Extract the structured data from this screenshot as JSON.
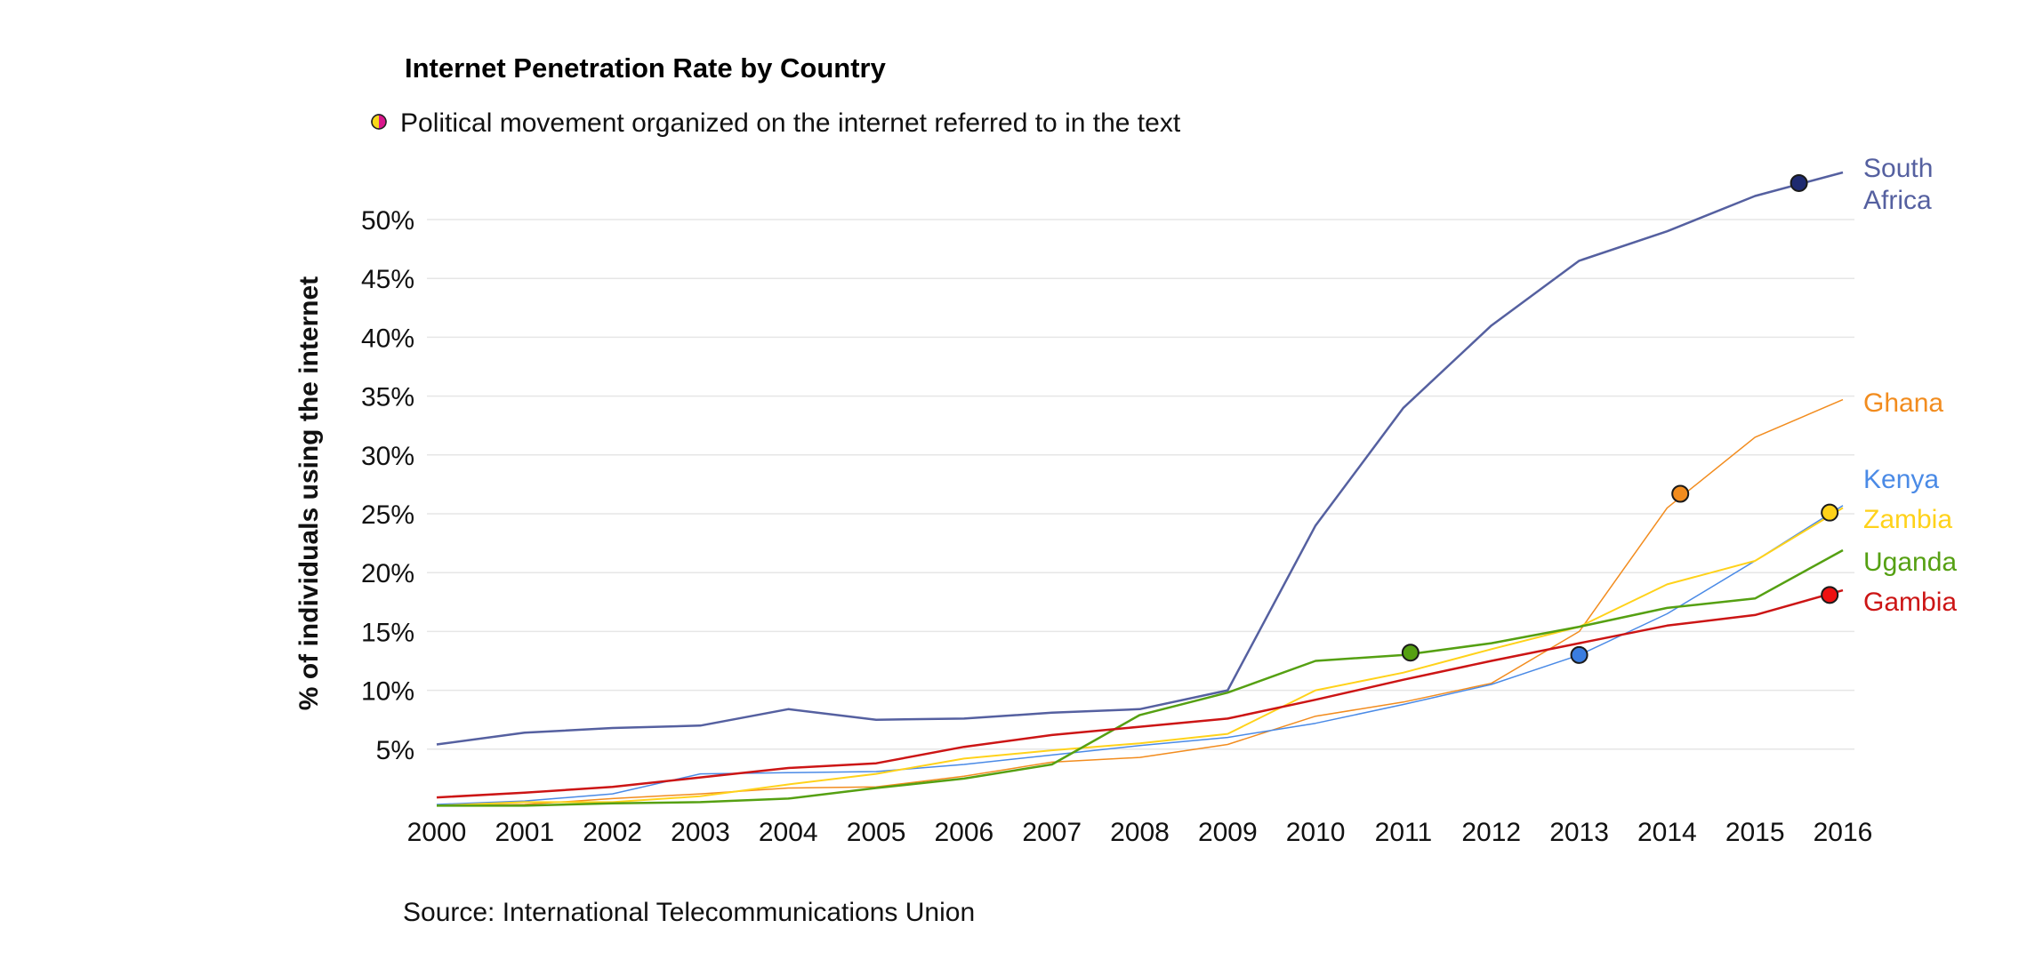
{
  "chart_data": {
    "type": "line",
    "title": "Internet Penetration Rate by Country",
    "legend_note": "Political movement organized on the internet referred to in the text",
    "ylabel": "% of individuals using the internet",
    "source": "Source: International Telecommunications Union",
    "x": [
      2000,
      2001,
      2002,
      2003,
      2004,
      2005,
      2006,
      2007,
      2008,
      2009,
      2010,
      2011,
      2012,
      2013,
      2014,
      2015,
      2016
    ],
    "x_tick_labels": [
      "2000",
      "2001",
      "2002",
      "2003",
      "2004",
      "2005",
      "2006",
      "2007",
      "2008",
      "2009",
      "2010",
      "2011",
      "2012",
      "2013",
      "2014",
      "2015",
      "2016"
    ],
    "yticks": [
      5,
      10,
      15,
      20,
      25,
      30,
      35,
      40,
      45,
      50
    ],
    "y_tick_labels": [
      "5%",
      "10%",
      "15%",
      "20%",
      "25%",
      "30%",
      "35%",
      "40%",
      "45%",
      "50%"
    ],
    "ylim": [
      0,
      52
    ],
    "grid": true,
    "series": [
      {
        "name": "South Africa",
        "label_lines": [
          "South",
          "Africa"
        ],
        "color": "#5560a0",
        "width": 2.5,
        "points": [
          [
            2000,
            5.4
          ],
          [
            2001,
            6.4
          ],
          [
            2002,
            6.8
          ],
          [
            2003,
            7.0
          ],
          [
            2004,
            8.4
          ],
          [
            2005,
            7.5
          ],
          [
            2006,
            7.6
          ],
          [
            2007,
            8.1
          ],
          [
            2008,
            8.4
          ],
          [
            2009,
            10.0
          ],
          [
            2010,
            24.0
          ],
          [
            2011,
            34.0
          ],
          [
            2012,
            41.0
          ],
          [
            2013,
            46.5
          ],
          [
            2014,
            49.0
          ],
          [
            2015,
            52.0
          ],
          [
            2016,
            54.0
          ]
        ],
        "marker": {
          "x": 2015.5,
          "y": 53.1,
          "fill": "#1e2a70"
        }
      },
      {
        "name": "Ghana",
        "label_lines": [
          "Ghana"
        ],
        "color": "#f28c1e",
        "width": 1.5,
        "points": [
          [
            2000,
            0.2
          ],
          [
            2001,
            0.3
          ],
          [
            2002,
            0.8
          ],
          [
            2003,
            1.2
          ],
          [
            2004,
            1.7
          ],
          [
            2005,
            1.8
          ],
          [
            2006,
            2.7
          ],
          [
            2007,
            3.9
          ],
          [
            2008,
            4.3
          ],
          [
            2009,
            5.4
          ],
          [
            2010,
            7.8
          ],
          [
            2011,
            9.0
          ],
          [
            2012,
            10.6
          ],
          [
            2013,
            15.0
          ],
          [
            2014,
            25.5
          ],
          [
            2015,
            31.5
          ],
          [
            2016,
            34.7
          ]
        ],
        "marker": {
          "x": 2014.15,
          "y": 26.7,
          "fill": "#f28c1e"
        }
      },
      {
        "name": "Kenya",
        "label_lines": [
          "Kenya"
        ],
        "color": "#4a8ae6",
        "width": 1.5,
        "points": [
          [
            2000,
            0.3
          ],
          [
            2001,
            0.6
          ],
          [
            2002,
            1.2
          ],
          [
            2003,
            2.9
          ],
          [
            2004,
            3.0
          ],
          [
            2005,
            3.1
          ],
          [
            2006,
            3.7
          ],
          [
            2007,
            4.5
          ],
          [
            2008,
            5.3
          ],
          [
            2009,
            6.0
          ],
          [
            2010,
            7.2
          ],
          [
            2011,
            8.8
          ],
          [
            2012,
            10.5
          ],
          [
            2013,
            13.0
          ],
          [
            2014,
            16.5
          ],
          [
            2015,
            21.0
          ],
          [
            2016,
            25.7
          ]
        ],
        "marker": {
          "x": 2013.0,
          "y": 13.0,
          "fill": "#3a7de0"
        }
      },
      {
        "name": "Zambia",
        "label_lines": [
          "Zambia"
        ],
        "color": "#ffd21a",
        "width": 2,
        "points": [
          [
            2000,
            0.2
          ],
          [
            2001,
            0.5
          ],
          [
            2002,
            0.5
          ],
          [
            2003,
            1.0
          ],
          [
            2004,
            2.0
          ],
          [
            2005,
            2.9
          ],
          [
            2006,
            4.2
          ],
          [
            2007,
            4.9
          ],
          [
            2008,
            5.5
          ],
          [
            2009,
            6.3
          ],
          [
            2010,
            10.0
          ],
          [
            2011,
            11.5
          ],
          [
            2012,
            13.5
          ],
          [
            2013,
            15.4
          ],
          [
            2014,
            19.0
          ],
          [
            2015,
            21.0
          ],
          [
            2016,
            25.5
          ]
        ],
        "marker": {
          "x": 2015.85,
          "y": 25.1,
          "fill": "#ffd21a"
        }
      },
      {
        "name": "Uganda",
        "label_lines": [
          "Uganda"
        ],
        "color": "#55a012",
        "width": 2.5,
        "points": [
          [
            2000,
            0.2
          ],
          [
            2001,
            0.2
          ],
          [
            2002,
            0.4
          ],
          [
            2003,
            0.5
          ],
          [
            2004,
            0.8
          ],
          [
            2005,
            1.7
          ],
          [
            2006,
            2.5
          ],
          [
            2007,
            3.7
          ],
          [
            2008,
            7.9
          ],
          [
            2009,
            9.8
          ],
          [
            2010,
            12.5
          ],
          [
            2011,
            13.0
          ],
          [
            2012,
            14.0
          ],
          [
            2013,
            15.4
          ],
          [
            2014,
            17.0
          ],
          [
            2015,
            17.8
          ],
          [
            2016,
            21.9
          ]
        ],
        "marker": {
          "x": 2011.08,
          "y": 13.2,
          "fill": "#55a012"
        }
      },
      {
        "name": "Gambia",
        "label_lines": [
          "Gambia"
        ],
        "color": "#cc1515",
        "width": 2.5,
        "points": [
          [
            2000,
            0.9
          ],
          [
            2001,
            1.3
          ],
          [
            2002,
            1.8
          ],
          [
            2003,
            2.6
          ],
          [
            2004,
            3.4
          ],
          [
            2005,
            3.8
          ],
          [
            2006,
            5.2
          ],
          [
            2007,
            6.2
          ],
          [
            2008,
            6.9
          ],
          [
            2009,
            7.6
          ],
          [
            2010,
            9.2
          ],
          [
            2011,
            10.9
          ],
          [
            2012,
            12.5
          ],
          [
            2013,
            14.0
          ],
          [
            2014,
            15.5
          ],
          [
            2015,
            16.4
          ],
          [
            2016,
            18.5
          ]
        ],
        "marker": {
          "x": 2015.85,
          "y": 18.1,
          "fill": "#ee1111"
        }
      }
    ]
  }
}
